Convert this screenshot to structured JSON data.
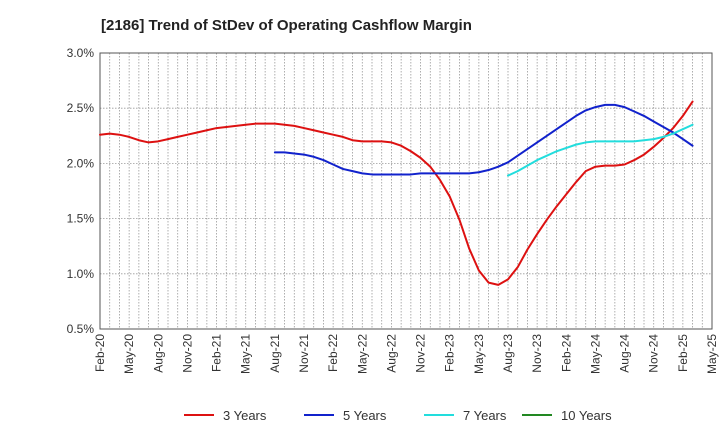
{
  "chart_data": {
    "type": "line",
    "title": "[2186]  Trend of StDev of Operating Cashflow Margin",
    "xlabel": "",
    "ylabel": "",
    "ylim": [
      0.5,
      3.0
    ],
    "y_ticks": [
      0.5,
      1.0,
      1.5,
      2.0,
      2.5,
      3.0
    ],
    "y_tick_labels": [
      "0.5%",
      "1.0%",
      "1.5%",
      "2.0%",
      "2.5%",
      "3.0%"
    ],
    "x_tick_labels": [
      "Feb-20",
      "May-20",
      "Aug-20",
      "Nov-20",
      "Feb-21",
      "May-21",
      "Aug-21",
      "Nov-21",
      "Feb-22",
      "May-22",
      "Aug-22",
      "Nov-22",
      "Feb-23",
      "May-23",
      "Aug-23",
      "Nov-23",
      "Feb-24",
      "May-24",
      "Aug-24",
      "Nov-24",
      "Feb-25",
      "May-25"
    ],
    "x_start": "Feb-20",
    "months_total": 63,
    "grid": true,
    "legend_position": "bottom",
    "series": [
      {
        "name": "3 Years",
        "color": "#dd1111",
        "points": [
          [
            0,
            2.26
          ],
          [
            1,
            2.27
          ],
          [
            2,
            2.26
          ],
          [
            3,
            2.24
          ],
          [
            4,
            2.21
          ],
          [
            5,
            2.19
          ],
          [
            6,
            2.2
          ],
          [
            7,
            2.22
          ],
          [
            8,
            2.24
          ],
          [
            9,
            2.26
          ],
          [
            10,
            2.28
          ],
          [
            11,
            2.3
          ],
          [
            12,
            2.32
          ],
          [
            13,
            2.33
          ],
          [
            14,
            2.34
          ],
          [
            15,
            2.35
          ],
          [
            16,
            2.36
          ],
          [
            17,
            2.36
          ],
          [
            18,
            2.36
          ],
          [
            19,
            2.35
          ],
          [
            20,
            2.34
          ],
          [
            21,
            2.32
          ],
          [
            22,
            2.3
          ],
          [
            23,
            2.28
          ],
          [
            24,
            2.26
          ],
          [
            25,
            2.24
          ],
          [
            26,
            2.21
          ],
          [
            27,
            2.2
          ],
          [
            28,
            2.2
          ],
          [
            29,
            2.2
          ],
          [
            30,
            2.19
          ],
          [
            31,
            2.16
          ],
          [
            32,
            2.11
          ],
          [
            33,
            2.05
          ],
          [
            34,
            1.97
          ],
          [
            35,
            1.85
          ],
          [
            36,
            1.7
          ],
          [
            37,
            1.49
          ],
          [
            38,
            1.23
          ],
          [
            39,
            1.03
          ],
          [
            40,
            0.92
          ],
          [
            41,
            0.9
          ],
          [
            42,
            0.95
          ],
          [
            43,
            1.06
          ],
          [
            44,
            1.22
          ],
          [
            45,
            1.36
          ],
          [
            46,
            1.49
          ],
          [
            47,
            1.61
          ],
          [
            48,
            1.72
          ],
          [
            49,
            1.83
          ],
          [
            50,
            1.93
          ],
          [
            51,
            1.97
          ],
          [
            52,
            1.98
          ],
          [
            53,
            1.98
          ],
          [
            54,
            1.99
          ],
          [
            55,
            2.03
          ],
          [
            56,
            2.08
          ],
          [
            57,
            2.15
          ],
          [
            58,
            2.23
          ],
          [
            59,
            2.32
          ],
          [
            60,
            2.43
          ],
          [
            61,
            2.56
          ]
        ]
      },
      {
        "name": "5 Years",
        "color": "#1122cc",
        "points": [
          [
            18,
            2.1
          ],
          [
            19,
            2.1
          ],
          [
            20,
            2.09
          ],
          [
            21,
            2.08
          ],
          [
            22,
            2.06
          ],
          [
            23,
            2.03
          ],
          [
            24,
            1.99
          ],
          [
            25,
            1.95
          ],
          [
            26,
            1.93
          ],
          [
            27,
            1.91
          ],
          [
            28,
            1.9
          ],
          [
            29,
            1.9
          ],
          [
            30,
            1.9
          ],
          [
            31,
            1.9
          ],
          [
            32,
            1.9
          ],
          [
            33,
            1.91
          ],
          [
            34,
            1.91
          ],
          [
            35,
            1.91
          ],
          [
            36,
            1.91
          ],
          [
            37,
            1.91
          ],
          [
            38,
            1.91
          ],
          [
            39,
            1.92
          ],
          [
            40,
            1.94
          ],
          [
            41,
            1.97
          ],
          [
            42,
            2.01
          ],
          [
            43,
            2.07
          ],
          [
            44,
            2.13
          ],
          [
            45,
            2.19
          ],
          [
            46,
            2.25
          ],
          [
            47,
            2.31
          ],
          [
            48,
            2.37
          ],
          [
            49,
            2.43
          ],
          [
            50,
            2.48
          ],
          [
            51,
            2.51
          ],
          [
            52,
            2.53
          ],
          [
            53,
            2.53
          ],
          [
            54,
            2.51
          ],
          [
            55,
            2.47
          ],
          [
            56,
            2.43
          ],
          [
            57,
            2.38
          ],
          [
            58,
            2.33
          ],
          [
            59,
            2.28
          ],
          [
            60,
            2.22
          ],
          [
            61,
            2.16
          ]
        ]
      },
      {
        "name": "7 Years",
        "color": "#22dddd",
        "points": [
          [
            42,
            1.89
          ],
          [
            43,
            1.93
          ],
          [
            44,
            1.98
          ],
          [
            45,
            2.03
          ],
          [
            46,
            2.07
          ],
          [
            47,
            2.11
          ],
          [
            48,
            2.14
          ],
          [
            49,
            2.17
          ],
          [
            50,
            2.19
          ],
          [
            51,
            2.2
          ],
          [
            52,
            2.2
          ],
          [
            53,
            2.2
          ],
          [
            54,
            2.2
          ],
          [
            55,
            2.2
          ],
          [
            56,
            2.21
          ],
          [
            57,
            2.22
          ],
          [
            58,
            2.24
          ],
          [
            59,
            2.27
          ],
          [
            60,
            2.31
          ],
          [
            61,
            2.35
          ]
        ]
      },
      {
        "name": "10 Years",
        "color": "#228822",
        "points": []
      }
    ]
  }
}
